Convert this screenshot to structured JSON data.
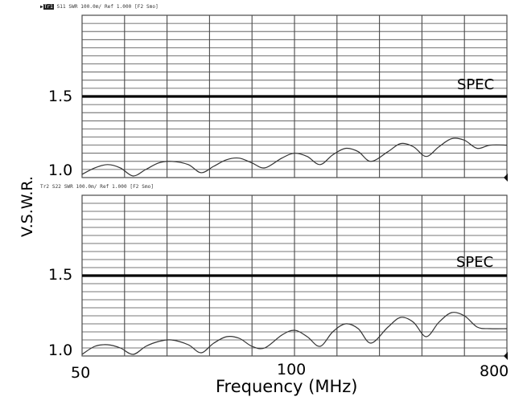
{
  "chart_data": [
    {
      "type": "line",
      "header": {
        "trace_tag": "Tr1",
        "text": "S11 SWR 100.0m/ Ref 1.000 [F2 Smo]"
      },
      "x_tick_labels": [],
      "y_tick_labels": [
        "1.5",
        "1.0"
      ],
      "ylim": [
        1.0,
        2.0
      ],
      "grid": true,
      "spec_line": {
        "label": "SPEC",
        "value": 1.5
      },
      "series": [
        {
          "x": [
            0,
            0.03,
            0.06,
            0.09,
            0.12,
            0.15,
            0.18,
            0.21,
            0.25,
            0.28,
            0.31,
            0.34,
            0.37,
            0.4,
            0.43,
            0.47,
            0.5,
            0.53,
            0.56,
            0.59,
            0.62,
            0.65,
            0.68,
            0.72,
            0.75,
            0.78,
            0.81,
            0.84,
            0.87,
            0.9,
            0.93,
            0.96,
            1.0
          ],
          "y": [
            1.02,
            1.06,
            1.08,
            1.06,
            1.01,
            1.05,
            1.09,
            1.1,
            1.08,
            1.03,
            1.07,
            1.11,
            1.12,
            1.09,
            1.06,
            1.12,
            1.15,
            1.13,
            1.08,
            1.14,
            1.18,
            1.16,
            1.1,
            1.16,
            1.21,
            1.19,
            1.13,
            1.19,
            1.24,
            1.23,
            1.18,
            1.2,
            1.2
          ]
        }
      ]
    },
    {
      "type": "line",
      "header": {
        "trace_tag": "Tr2",
        "text": "S22 SWR 100.0m/ Ref 1.000 [F2 Smo]"
      },
      "x_tick_labels": [
        "50",
        "100",
        "800"
      ],
      "y_tick_labels": [
        "1.5",
        "1.0"
      ],
      "ylim": [
        1.0,
        2.0
      ],
      "grid": true,
      "spec_line": {
        "label": "SPEC",
        "value": 1.5
      },
      "series": [
        {
          "x": [
            0,
            0.03,
            0.06,
            0.09,
            0.12,
            0.15,
            0.18,
            0.21,
            0.25,
            0.28,
            0.31,
            0.34,
            0.37,
            0.4,
            0.43,
            0.47,
            0.5,
            0.53,
            0.56,
            0.59,
            0.62,
            0.65,
            0.68,
            0.72,
            0.75,
            0.78,
            0.81,
            0.84,
            0.87,
            0.9,
            0.93,
            0.96,
            1.0
          ],
          "y": [
            1.01,
            1.06,
            1.07,
            1.05,
            1.01,
            1.06,
            1.09,
            1.1,
            1.07,
            1.02,
            1.08,
            1.12,
            1.11,
            1.06,
            1.05,
            1.13,
            1.16,
            1.12,
            1.06,
            1.15,
            1.2,
            1.17,
            1.08,
            1.18,
            1.24,
            1.21,
            1.12,
            1.21,
            1.27,
            1.25,
            1.18,
            1.17,
            1.17
          ]
        }
      ]
    }
  ],
  "shared": {
    "y_title": "V.S.W.R.",
    "x_title": "Frequency (MHz)"
  },
  "colors": {
    "grid": "#4a4a4a",
    "trace": "#333333",
    "spec": "#000000"
  }
}
